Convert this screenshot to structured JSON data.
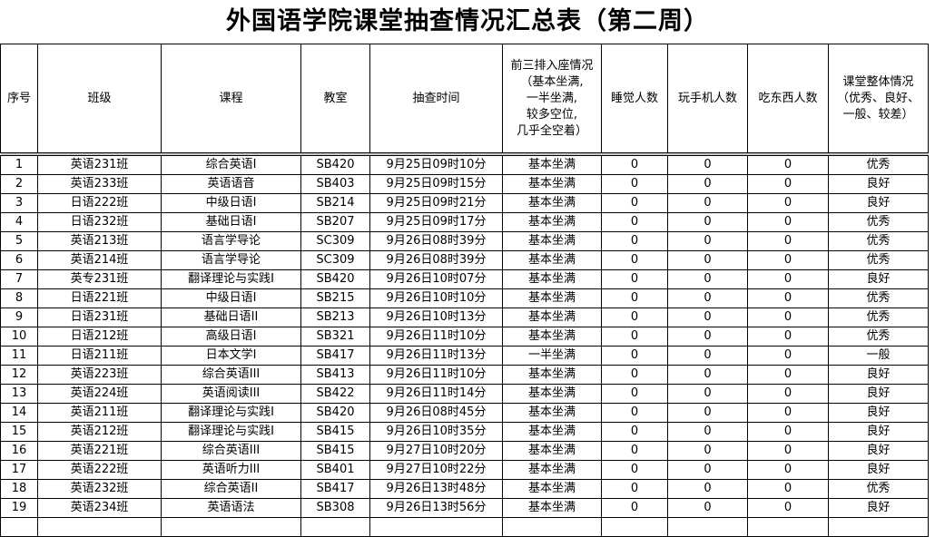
{
  "title": "外国语学院课堂抽查情况汇总表（第二周）",
  "headers": [
    "序号",
    "班级",
    "课程",
    "教室",
    "抽查时间",
    "前三排入座情况\n（基本坐满,\n一半坐满,\n较多空位,\n几乎全空着）",
    "睡觉人数",
    "玩手机人数",
    "吃东西人数",
    "课堂整体情况\n（优秀、良好、\n一般、较差）"
  ],
  "rows": [
    [
      "1",
      "英语231班",
      "综合英语I",
      "SB420",
      "9月25日09时10分",
      "基本坐满",
      "0",
      "0",
      "0",
      "优秀"
    ],
    [
      "2",
      "英语233班",
      "英语语音",
      "SB403",
      "9月25日09时15分",
      "基本坐满",
      "0",
      "0",
      "0",
      "良好"
    ],
    [
      "3",
      "日语222班",
      "中级日语I",
      "SB214",
      "9月25日09时21分",
      "基本坐满",
      "0",
      "0",
      "0",
      "良好"
    ],
    [
      "4",
      "日语232班",
      "基础日语I",
      "SB207",
      "9月25日09时17分",
      "基本坐满",
      "0",
      "0",
      "0",
      "优秀"
    ],
    [
      "5",
      "英语213班",
      "语言学导论",
      "SC309",
      "9月26日08时39分",
      "基本坐满",
      "0",
      "0",
      "0",
      "优秀"
    ],
    [
      "6",
      "英语214班",
      "语言学导论",
      "SC309",
      "9月26日08时39分",
      "基本坐满",
      "0",
      "0",
      "0",
      "优秀"
    ],
    [
      "7",
      "英专231班",
      "翻译理论与实践I",
      "SB420",
      "9月26日10时07分",
      "基本坐满",
      "0",
      "0",
      "0",
      "良好"
    ],
    [
      "8",
      "日语221班",
      "中级日语I",
      "SB215",
      "9月26日10时10分",
      "基本坐满",
      "0",
      "0",
      "0",
      "优秀"
    ],
    [
      "9",
      "日语231班",
      "基础日语II",
      "SB213",
      "9月26日10时13分",
      "基本坐满",
      "0",
      "0",
      "0",
      "优秀"
    ],
    [
      "10",
      "日语212班",
      "高级日语I",
      "SB321",
      "9月26日11时10分",
      "基本坐满",
      "0",
      "0",
      "0",
      "优秀"
    ],
    [
      "11",
      "日语211班",
      "日本文学I",
      "SB417",
      "9月26日11时13分",
      "一半坐满",
      "0",
      "0",
      "0",
      "一般"
    ],
    [
      "12",
      "英语223班",
      "综合英语III",
      "SB413",
      "9月26日11时10分",
      "基本坐满",
      "0",
      "0",
      "0",
      "良好"
    ],
    [
      "13",
      "英语224班",
      "英语阅读III",
      "SB422",
      "9月26日11时14分",
      "基本坐满",
      "0",
      "0",
      "0",
      "良好"
    ],
    [
      "14",
      "英语211班",
      "翻译理论与实践I",
      "SB420",
      "9月26日08时45分",
      "基本坐满",
      "0",
      "0",
      "0",
      "良好"
    ],
    [
      "15",
      "英语212班",
      "翻译理论与实践I",
      "SB415",
      "9月26日10时35分",
      "基本坐满",
      "0",
      "0",
      "0",
      "良好"
    ],
    [
      "16",
      "英语221班",
      "综合英语III",
      "SB415",
      "9月27日10时20分",
      "基本坐满",
      "0",
      "0",
      "0",
      "良好"
    ],
    [
      "17",
      "英语222班",
      "英语听力III",
      "SB401",
      "9月27日10时22分",
      "基本坐满",
      "0",
      "0",
      "0",
      "良好"
    ],
    [
      "18",
      "英语232班",
      "综合英语II",
      "SB417",
      "9月26日13时48分",
      "基本坐满",
      "0",
      "0",
      "0",
      "优秀"
    ],
    [
      "19",
      "英语234班",
      "英语语法",
      "SB308",
      "9月26日13时56分",
      "基本坐满",
      "0",
      "0",
      "0",
      "良好"
    ]
  ]
}
